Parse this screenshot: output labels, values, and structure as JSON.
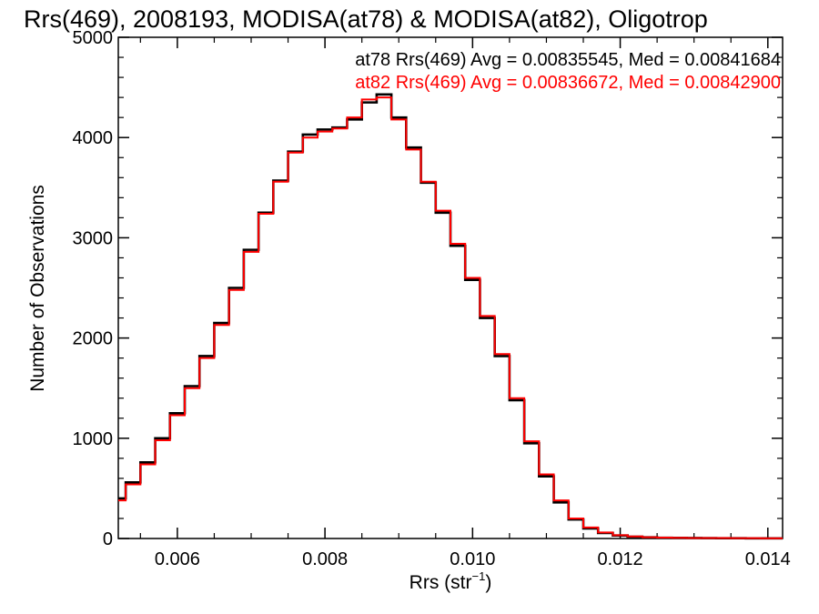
{
  "chart_data": {
    "type": "histogram",
    "title": "Rrs(469), 2008193, MODISA(at78) & MODISA(at82), Oligotrop",
    "xlabel": "Rrs (str",
    "xlabel_sup": "−1",
    "xlabel_close": ")",
    "ylabel": "Number of Observations",
    "xlim": [
      0.0052,
      0.0142
    ],
    "ylim": [
      0,
      5000
    ],
    "x_ticks": [
      0.006,
      0.008,
      0.01,
      0.012,
      0.014
    ],
    "x_tick_labels": [
      "0.006",
      "0.008",
      "0.010",
      "0.012",
      "0.014"
    ],
    "y_ticks": [
      0,
      1000,
      2000,
      3000,
      4000,
      5000
    ],
    "y_tick_labels": [
      "0",
      "1000",
      "2000",
      "3000",
      "4000",
      "5000"
    ],
    "grid": false,
    "legend_position": "top-right",
    "series": [
      {
        "legend_text": "at78 Rrs(469) Avg = 0.00835545, Med = 0.00841684",
        "color": "#000000",
        "x": [
          0.0052,
          0.0054,
          0.0056,
          0.0058,
          0.006,
          0.0062,
          0.0064,
          0.0066,
          0.0068,
          0.007,
          0.0072,
          0.0074,
          0.0076,
          0.0078,
          0.008,
          0.0082,
          0.0084,
          0.0086,
          0.0088,
          0.009,
          0.0092,
          0.0094,
          0.0096,
          0.0098,
          0.01,
          0.0102,
          0.0104,
          0.0106,
          0.0108,
          0.011,
          0.0112,
          0.0114,
          0.0116,
          0.0118,
          0.012,
          0.0122,
          0.0124,
          0.0126,
          0.0128,
          0.013,
          0.0132,
          0.0134,
          0.0136,
          0.0138,
          0.014,
          0.0142
        ],
        "values": [
          400,
          560,
          760,
          1000,
          1250,
          1520,
          1820,
          2150,
          2500,
          2880,
          3250,
          3570,
          3860,
          4030,
          4080,
          4100,
          4180,
          4350,
          4430,
          4200,
          3900,
          3550,
          3250,
          2920,
          2580,
          2200,
          1820,
          1380,
          950,
          620,
          360,
          190,
          100,
          55,
          30,
          18,
          12,
          8,
          6,
          5,
          4,
          3,
          3,
          2,
          2,
          2
        ]
      },
      {
        "legend_text": "at82 Rrs(469) Avg = 0.00836672, Med = 0.00842900",
        "color": "#ff0000",
        "x": [
          0.0052,
          0.0054,
          0.0056,
          0.0058,
          0.006,
          0.0062,
          0.0064,
          0.0066,
          0.0068,
          0.007,
          0.0072,
          0.0074,
          0.0076,
          0.0078,
          0.008,
          0.0082,
          0.0084,
          0.0086,
          0.0088,
          0.009,
          0.0092,
          0.0094,
          0.0096,
          0.0098,
          0.01,
          0.0102,
          0.0104,
          0.0106,
          0.0108,
          0.011,
          0.0112,
          0.0114,
          0.0116,
          0.0118,
          0.012,
          0.0122,
          0.0124,
          0.0126,
          0.0128,
          0.013,
          0.0132,
          0.0134,
          0.0136,
          0.0138,
          0.014,
          0.0142
        ],
        "values": [
          380,
          540,
          740,
          980,
          1230,
          1500,
          1800,
          2130,
          2480,
          2860,
          3240,
          3560,
          3850,
          4000,
          4060,
          4090,
          4200,
          4380,
          4400,
          4180,
          3880,
          3560,
          3270,
          2940,
          2600,
          2220,
          1840,
          1400,
          970,
          640,
          380,
          200,
          110,
          60,
          33,
          20,
          13,
          9,
          7,
          5,
          4,
          4,
          3,
          3,
          2,
          2
        ]
      }
    ]
  }
}
